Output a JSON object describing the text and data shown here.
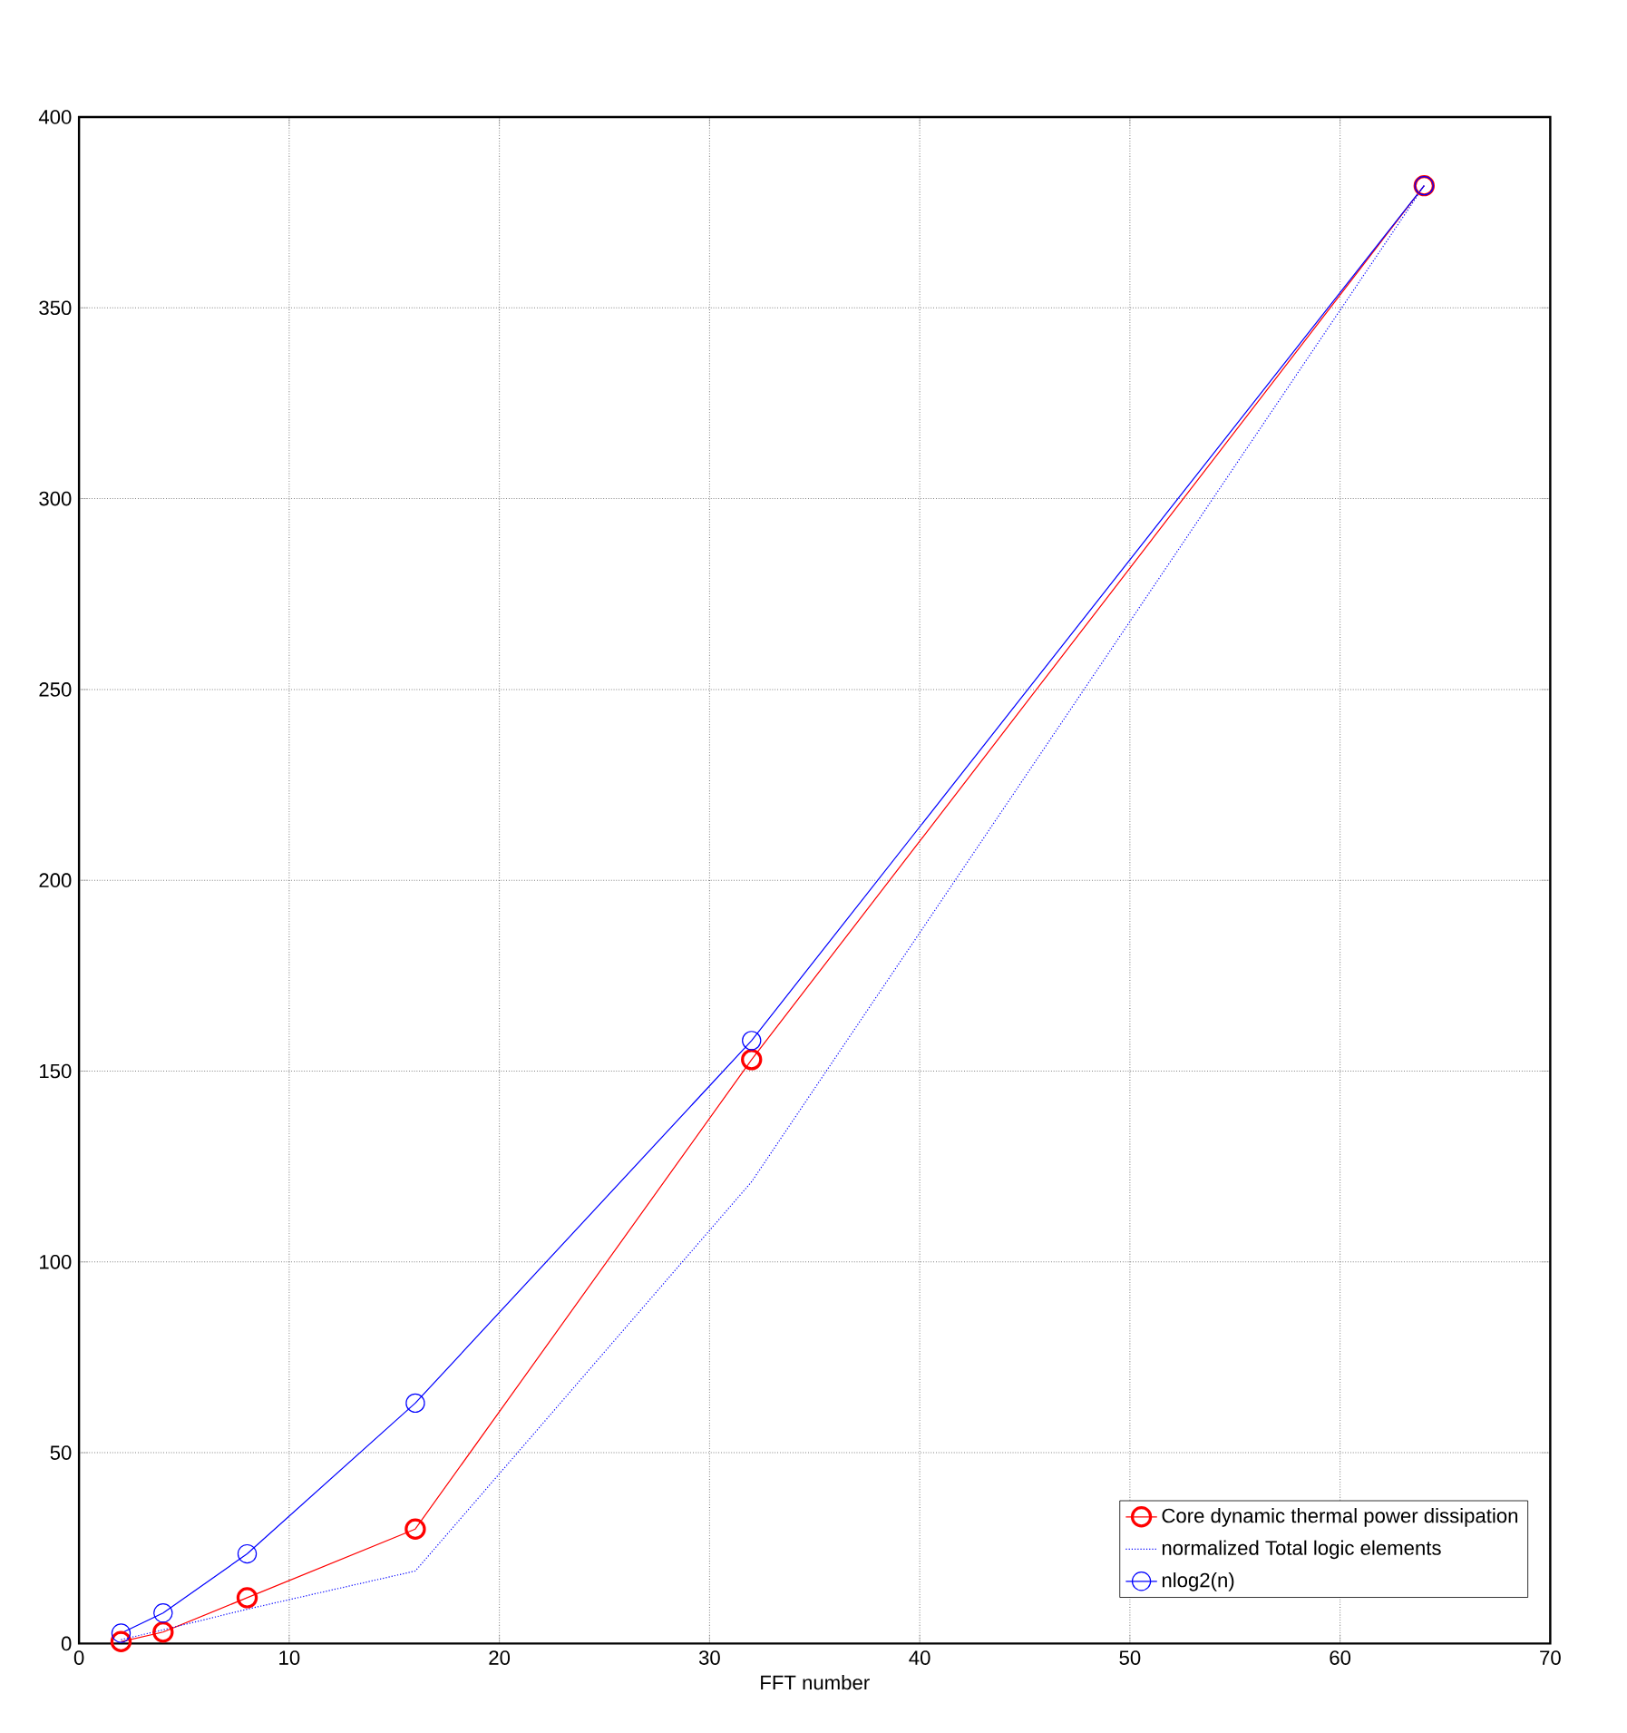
{
  "chart_data": {
    "type": "line",
    "xlabel": "FFT number",
    "x": [
      2,
      4,
      8,
      16,
      32,
      64
    ],
    "series": [
      {
        "name": "Core dynamic thermal power dissipation",
        "color": "#ff0000",
        "values": [
          0.5,
          3,
          12,
          30,
          153,
          382
        ],
        "marker": "circle",
        "line_style": "solid"
      },
      {
        "name": "normalized Total logic elements",
        "color": "#0000ff",
        "values": [
          1,
          3.6,
          9,
          19,
          121,
          382
        ],
        "marker": "none",
        "line_style": "dotted"
      },
      {
        "name": "nlog2(n)",
        "color": "#0000ff",
        "values": [
          2.7,
          8,
          23.5,
          63,
          158,
          382
        ],
        "marker": "circle",
        "line_style": "solid"
      }
    ],
    "xlim": [
      0,
      70
    ],
    "xticks": [
      0,
      10,
      20,
      30,
      40,
      50,
      60,
      70
    ],
    "ylim": [
      0,
      400
    ],
    "yticks": [
      0,
      50,
      100,
      150,
      200,
      250,
      300,
      350,
      400
    ],
    "grid": true,
    "legend": "bottom right"
  }
}
